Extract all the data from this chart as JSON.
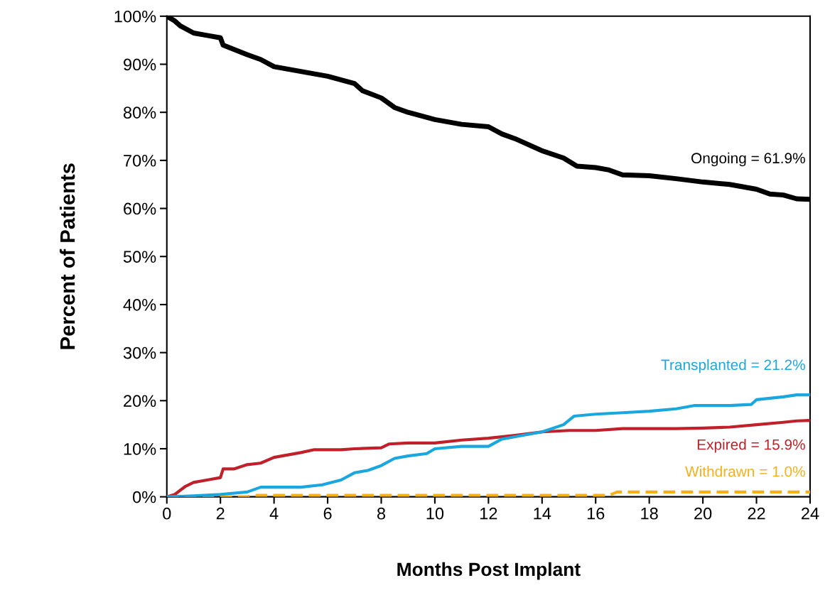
{
  "chart_data": {
    "type": "line",
    "xlabel": "Months Post Implant",
    "ylabel": "Percent of Patients",
    "xlim": [
      0,
      24
    ],
    "xticks": [
      0,
      2,
      4,
      6,
      8,
      10,
      12,
      14,
      16,
      18,
      20,
      22,
      24
    ],
    "ylim": [
      0,
      100
    ],
    "yticks": [
      {
        "value": 0,
        "label": "0%"
      },
      {
        "value": 10,
        "label": "10%"
      },
      {
        "value": 20,
        "label": "20%"
      },
      {
        "value": 30,
        "label": "30%"
      },
      {
        "value": 40,
        "label": "40%"
      },
      {
        "value": 50,
        "label": "50%"
      },
      {
        "value": 60,
        "label": "60%"
      },
      {
        "value": 70,
        "label": "70%"
      },
      {
        "value": 80,
        "label": "80%"
      },
      {
        "value": 90,
        "label": "90%"
      },
      {
        "value": 100,
        "label": "100%"
      }
    ],
    "grid": false,
    "series": [
      {
        "color": "#000000",
        "x": [
          0,
          0.3,
          0.5,
          1,
          1.5,
          2,
          2.1,
          3,
          3.5,
          4,
          5,
          6,
          7,
          7.3,
          8,
          8.5,
          9,
          10,
          11,
          12,
          12.5,
          13,
          14,
          14.8,
          15.3,
          16,
          16.5,
          17,
          18,
          19,
          20,
          21,
          22,
          22.5,
          23,
          23.5,
          24
        ],
        "values": [
          100,
          99,
          98,
          96.5,
          96,
          95.5,
          94,
          92,
          91,
          89.5,
          88.5,
          87.5,
          86,
          84.5,
          83,
          81,
          80,
          78.5,
          77.5,
          77,
          75.5,
          74.5,
          72,
          70.5,
          68.8,
          68.5,
          68,
          67,
          66.8,
          66.2,
          65.5,
          65,
          64,
          63,
          62.8,
          62,
          61.9
        ]
      },
      {
        "color": "#1aa7e0",
        "x": [
          0,
          1,
          2,
          3,
          3.5,
          5,
          5.8,
          6.5,
          7,
          7.5,
          8,
          8.5,
          9,
          9.7,
          10,
          11,
          12,
          12.5,
          13,
          14,
          14.8,
          15.2,
          16,
          17,
          18,
          19,
          19.7,
          21,
          21.8,
          22,
          22.5,
          23,
          23.5,
          24
        ],
        "values": [
          0,
          0.2,
          0.5,
          1,
          2,
          2,
          2.5,
          3.5,
          5,
          5.5,
          6.5,
          8,
          8.5,
          9,
          10,
          10.5,
          10.5,
          12,
          12.5,
          13.5,
          15,
          16.8,
          17.2,
          17.5,
          17.8,
          18.3,
          19,
          19,
          19.2,
          20.2,
          20.5,
          20.8,
          21.2,
          21.2
        ]
      },
      {
        "color": "#c0202a",
        "x": [
          0,
          0.3,
          0.7,
          1,
          1.5,
          2,
          2.1,
          2.5,
          3,
          3.5,
          4,
          5,
          5.5,
          6.5,
          7,
          8,
          8.3,
          9,
          10,
          11,
          12,
          12.5,
          13,
          14,
          15,
          16,
          17,
          19,
          20,
          21,
          22,
          23,
          23.5,
          24
        ],
        "values": [
          0,
          0.5,
          2.2,
          3,
          3.5,
          4,
          5.8,
          5.8,
          6.7,
          7,
          8.2,
          9.2,
          9.8,
          9.8,
          10,
          10.2,
          11,
          11.2,
          11.2,
          11.8,
          12.2,
          12.5,
          12.8,
          13.5,
          13.8,
          13.8,
          14.2,
          14.2,
          14.3,
          14.5,
          15,
          15.5,
          15.8,
          15.9
        ]
      },
      {
        "color": "#f5b019",
        "line_style": "dashed",
        "x": [
          0,
          3,
          3.2,
          16.5,
          16.8,
          24
        ],
        "values": [
          0,
          0,
          0.3,
          0.3,
          1.0,
          1.0
        ]
      }
    ],
    "annotations": [
      "Ongoing = 61.9%",
      "Transplanted = 21.2%",
      "Expired = 15.9%",
      "Withdrawn = 1.0%"
    ]
  }
}
